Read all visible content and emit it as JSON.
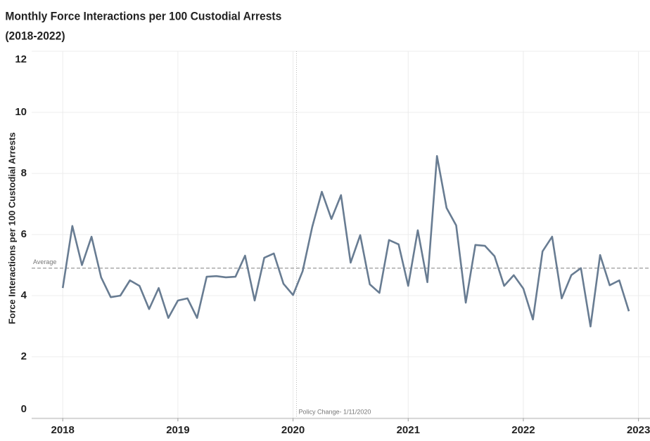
{
  "chart_data": {
    "type": "line",
    "title": [
      "Monthly Force Interactions per 100 Custodial Arrests",
      "(2018-2022)"
    ],
    "y_label": "Force Interactions per 100 Custodial Arrests",
    "x": [
      2018.0,
      2018.0833,
      2018.1667,
      2018.25,
      2018.3333,
      2018.4167,
      2018.5,
      2018.5833,
      2018.6667,
      2018.75,
      2018.8333,
      2018.9167,
      2019.0,
      2019.0833,
      2019.1667,
      2019.25,
      2019.3333,
      2019.4167,
      2019.5,
      2019.5833,
      2019.6667,
      2019.75,
      2019.8333,
      2019.9167,
      2020.0,
      2020.0833,
      2020.1667,
      2020.25,
      2020.3333,
      2020.4167,
      2020.5,
      2020.5833,
      2020.6667,
      2020.75,
      2020.8333,
      2020.9167,
      2021.0,
      2021.0833,
      2021.1667,
      2021.25,
      2021.3333,
      2021.4167,
      2021.5,
      2021.5833,
      2021.6667,
      2021.75,
      2021.8333,
      2021.9167,
      2022.0,
      2022.0833,
      2022.1667,
      2022.25,
      2022.3333,
      2022.4167,
      2022.5,
      2022.5833,
      2022.6667,
      2022.75,
      2022.8333,
      2022.9167
    ],
    "series": [
      {
        "name": "Force Interactions per 100 Custodial Arrests",
        "color": "#687c92",
        "values": [
          4.25,
          6.28,
          5.0,
          5.93,
          4.6,
          3.95,
          4.0,
          4.5,
          4.32,
          3.56,
          4.25,
          3.27,
          3.84,
          3.91,
          3.27,
          4.62,
          4.64,
          4.6,
          4.62,
          5.31,
          3.84,
          5.24,
          5.38,
          4.39,
          4.02,
          4.8,
          6.25,
          7.4,
          6.51,
          7.29,
          5.08,
          5.98,
          4.37,
          4.09,
          5.82,
          5.68,
          4.32,
          6.14,
          4.44,
          8.57,
          6.87,
          6.3,
          3.77,
          5.66,
          5.63,
          5.29,
          4.32,
          4.67,
          4.23,
          3.22,
          5.45,
          5.93,
          3.91,
          4.67,
          4.9,
          2.99,
          5.33,
          4.34,
          4.5,
          3.49
        ]
      }
    ],
    "average": {
      "label": "Average",
      "value": 4.9
    },
    "policy_change": {
      "label": "Policy Change- 1/11/2020",
      "x": 2020.03
    },
    "xlim": [
      2017.73,
      2023.1
    ],
    "xticks": [
      2018,
      2019,
      2020,
      2021,
      2022,
      2023
    ],
    "ylim": [
      0,
      12
    ],
    "yticks": [
      0,
      2,
      4,
      6,
      8,
      10,
      12
    ],
    "grid": true
  }
}
